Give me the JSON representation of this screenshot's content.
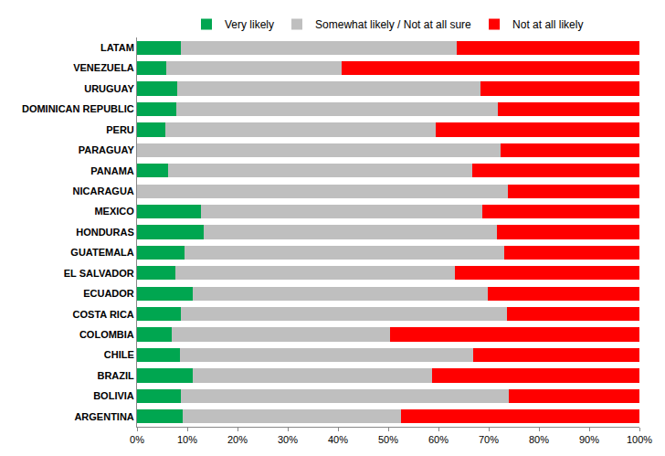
{
  "chart_data": {
    "type": "bar",
    "orientation": "horizontal",
    "stacked": true,
    "grid": false,
    "legend": "top",
    "categories": [
      "LATAM",
      "VENEZUELA",
      "URUGUAY",
      "DOMINICAN REPUBLIC",
      "PERU",
      "PARAGUAY",
      "PANAMA",
      "NICARAGUA",
      "MEXICO",
      "HONDURAS",
      "GUATEMALA",
      "EL SALVADOR",
      "ECUADOR",
      "COSTA RICA",
      "COLOMBIA",
      "CHILE",
      "BRAZIL",
      "BOLIVIA",
      "ARGENTINA"
    ],
    "series": [
      {
        "name": "Very likely",
        "color": "#00a650",
        "values": [
          8.8,
          5.9,
          8.0,
          7.9,
          5.7,
          0,
          6.2,
          0,
          12.8,
          13.2,
          9.5,
          7.7,
          11.0,
          8.8,
          6.9,
          8.6,
          11.0,
          8.8,
          9.1
        ]
      },
      {
        "name": "Somewhat likely / Not at all sure",
        "color": "#bfbfbf",
        "values": [
          54.8,
          34.9,
          60.4,
          63.9,
          53.7,
          72.4,
          60.5,
          73.9,
          55.9,
          58.5,
          63.6,
          55.6,
          58.8,
          64.9,
          43.4,
          58.3,
          47.7,
          65.2,
          43.4
        ]
      },
      {
        "name": "Not at all likely",
        "color": "#ff0000",
        "values": [
          36.4,
          59.2,
          31.6,
          28.2,
          40.6,
          27.6,
          33.3,
          26.1,
          31.3,
          28.3,
          26.9,
          36.7,
          30.2,
          26.3,
          49.7,
          33.1,
          41.3,
          26.0,
          47.5
        ]
      }
    ],
    "xlim": [
      0,
      100
    ],
    "xticks": [
      {
        "value": 0,
        "label": "0%"
      },
      {
        "value": 10,
        "label": "10%"
      },
      {
        "value": 20,
        "label": "20%"
      },
      {
        "value": 30,
        "label": "30%"
      },
      {
        "value": 40,
        "label": "40%"
      },
      {
        "value": 50,
        "label": "50%"
      },
      {
        "value": 60,
        "label": "60%"
      },
      {
        "value": 70,
        "label": "70%"
      },
      {
        "value": 80,
        "label": "80%"
      },
      {
        "value": 90,
        "label": "90%"
      },
      {
        "value": 100,
        "label": "100%"
      }
    ]
  }
}
